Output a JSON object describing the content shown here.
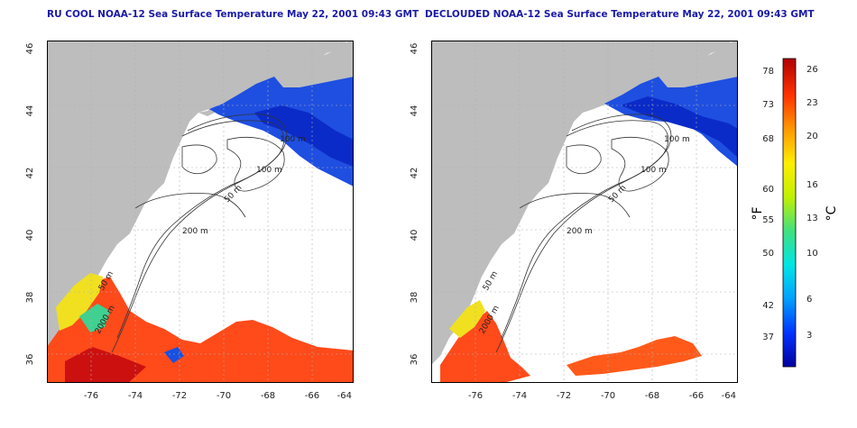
{
  "titles": {
    "left": "RU COOL NOAA-12 Sea Surface Temperature May 22, 2001 09:43 GMT",
    "right": "DECLOUDED NOAA-12 Sea Surface Temperature May 22, 2001 09:43 GMT"
  },
  "map": {
    "x_ticks": [
      "-76",
      "-74",
      "-72",
      "-70",
      "-68",
      "-66",
      "-64"
    ],
    "y_ticks": [
      "46",
      "44",
      "42",
      "40",
      "38",
      "36"
    ],
    "contour_labels": [
      "200 m",
      "100 m",
      "50 m",
      "50 m",
      "2000 m",
      "100 m"
    ],
    "colors": {
      "land": "#bdbdbd",
      "ocean": "#ffffff",
      "grid": "#b0b0b0",
      "contour": "#333333"
    }
  },
  "colorbar": {
    "fahrenheit_unit": "°F",
    "celsius_unit": "°C",
    "fahrenheit_ticks": [
      "78",
      "73",
      "68",
      "60",
      "55",
      "50",
      "42",
      "37"
    ],
    "celsius_ticks": [
      "26",
      "23",
      "20",
      "16",
      "13",
      "10",
      "6",
      "3"
    ],
    "colors": [
      "#0000a0",
      "#0033ff",
      "#00a0ff",
      "#00e5e5",
      "#40e080",
      "#c0f000",
      "#ffee00",
      "#ff9900",
      "#ff3300",
      "#b00000"
    ]
  }
}
